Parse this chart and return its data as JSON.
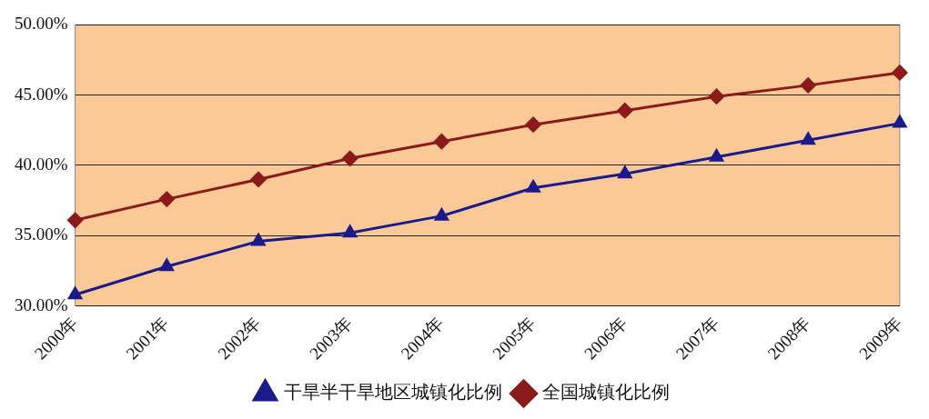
{
  "chart_data": {
    "type": "line",
    "categories": [
      "2000年",
      "2001年",
      "2002年",
      "2003年",
      "2004年",
      "2005年",
      "2006年",
      "2007年",
      "2008年",
      "2009年"
    ],
    "series": [
      {
        "name": "干旱半干旱地区城镇化比例",
        "color": "#1a1a8c",
        "marker": "triangle",
        "values": [
          30.8,
          32.8,
          34.6,
          35.2,
          36.4,
          38.4,
          39.4,
          40.6,
          41.8,
          43.0
        ]
      },
      {
        "name": "全国城镇化比例",
        "color": "#8b1a1a",
        "marker": "diamond",
        "values": [
          36.1,
          37.6,
          39.0,
          40.5,
          41.7,
          42.9,
          43.9,
          44.9,
          45.7,
          46.6
        ]
      }
    ],
    "ylim": [
      30,
      50
    ],
    "yticks": [
      {
        "value": 30,
        "label": "30.00%"
      },
      {
        "value": 35,
        "label": "35.00%"
      },
      {
        "value": 40,
        "label": "40.00%"
      },
      {
        "value": 45,
        "label": "45.00%"
      },
      {
        "value": 50,
        "label": "50.00%"
      }
    ],
    "grid": "y",
    "legend": "bottom",
    "line_style": "solid"
  }
}
